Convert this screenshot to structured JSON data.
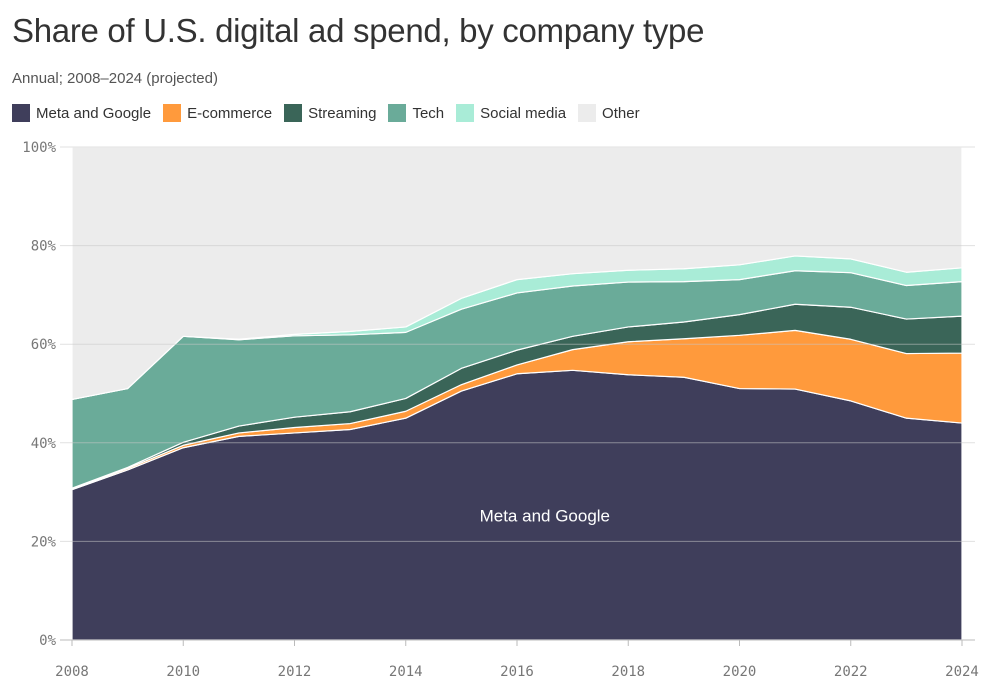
{
  "title": "Share of U.S. digital ad spend, by company type",
  "subtitle": "Annual; 2008–2024 (projected)",
  "chart_data": {
    "type": "area",
    "stacked": true,
    "x": [
      2008,
      2009,
      2010,
      2011,
      2012,
      2013,
      2014,
      2015,
      2016,
      2017,
      2018,
      2019,
      2020,
      2021,
      2022,
      2023,
      2024
    ],
    "series": [
      {
        "name": "Meta and Google",
        "color": "#3f3e5b",
        "values": [
          30.5,
          34.5,
          39.0,
          41.3,
          42.0,
          42.7,
          45.0,
          50.5,
          54.0,
          54.7,
          53.8,
          53.3,
          51.0,
          50.9,
          48.5,
          45.0,
          44.0
        ]
      },
      {
        "name": "E-commerce",
        "color": "#ff9a3c",
        "values": [
          0.2,
          0.3,
          0.5,
          0.7,
          1.1,
          1.2,
          1.4,
          1.3,
          1.8,
          4.2,
          6.7,
          7.8,
          10.8,
          11.9,
          12.5,
          13.1,
          14.2
        ]
      },
      {
        "name": "Streaming",
        "color": "#3a6558",
        "values": [
          0.1,
          0.2,
          0.6,
          1.4,
          2.1,
          2.4,
          2.6,
          3.3,
          3.0,
          2.7,
          3.0,
          3.4,
          4.2,
          5.3,
          6.5,
          7.0,
          7.5
        ]
      },
      {
        "name": "Tech",
        "color": "#6aab99",
        "values": [
          18.0,
          16.0,
          21.5,
          17.5,
          16.5,
          15.6,
          13.4,
          12.0,
          11.6,
          10.2,
          9.1,
          8.2,
          7.1,
          6.8,
          7.0,
          6.8,
          7.0
        ]
      },
      {
        "name": "Social media",
        "color": "#a9ecd7",
        "values": [
          0.0,
          0.0,
          0.0,
          0.1,
          0.3,
          0.7,
          1.1,
          2.2,
          2.7,
          2.5,
          2.4,
          2.6,
          3.0,
          3.0,
          2.8,
          2.7,
          2.8
        ]
      },
      {
        "name": "Other",
        "color": "#ececec",
        "values": [
          51.2,
          49.0,
          38.4,
          39.0,
          38.0,
          37.4,
          36.5,
          30.7,
          26.9,
          25.7,
          25.0,
          24.7,
          23.9,
          22.1,
          22.7,
          25.4,
          24.5
        ]
      }
    ],
    "y_ticks": [
      "0%",
      "20%",
      "40%",
      "60%",
      "80%",
      "100%"
    ],
    "y_tick_values": [
      0,
      20,
      40,
      60,
      80,
      100
    ],
    "x_ticks": [
      "2008",
      "2010",
      "2012",
      "2014",
      "2016",
      "2018",
      "2020",
      "2022",
      "2024"
    ],
    "x_tick_values": [
      2008,
      2010,
      2012,
      2014,
      2016,
      2018,
      2020,
      2022,
      2024
    ],
    "xlim": [
      2008,
      2024
    ],
    "ylim": [
      0,
      100
    ],
    "grid": true,
    "legend_position": "top-left",
    "annotations": [
      {
        "text": "Meta and Google",
        "x": 2016.5,
        "y": 24
      }
    ]
  }
}
